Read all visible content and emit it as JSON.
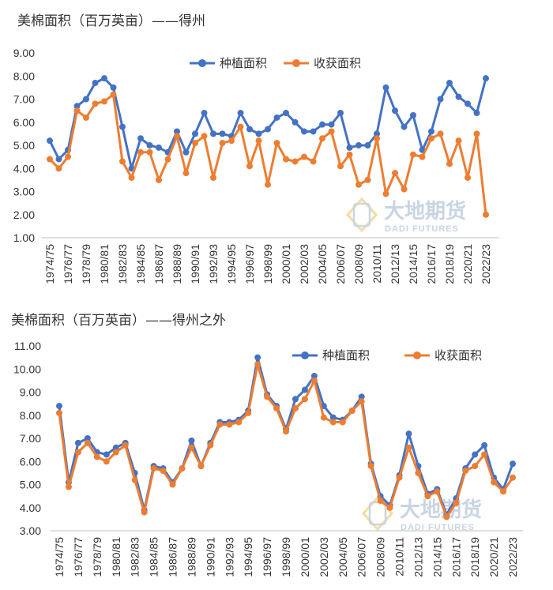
{
  "colors": {
    "planted": "#4472C4",
    "harvested": "#ED7D31",
    "axis": "#bfbfbf"
  },
  "watermark": {
    "cn": "大地期货",
    "en": "DADI FUTURES"
  },
  "chart_data": [
    {
      "type": "line",
      "title": "美棉面积（百万英亩）——得州",
      "xlabel": "",
      "ylabel": "",
      "ylim": [
        1,
        9
      ],
      "y_ticks": [
        "1.00",
        "2.00",
        "3.00",
        "4.00",
        "5.00",
        "6.00",
        "7.00",
        "8.00",
        "9.00"
      ],
      "x_tick_labels": [
        "1974/75",
        "1976/77",
        "1978/79",
        "1980/81",
        "1982/83",
        "1984/85",
        "1986/87",
        "1988/89",
        "1990/91",
        "1992/93",
        "1994/95",
        "1996/97",
        "1998/99",
        "2000/01",
        "2002/03",
        "2004/05",
        "2006/07",
        "2008/09",
        "2010/11",
        "2012/13",
        "2014/15",
        "2016/17",
        "2018/19",
        "2020/21",
        "2022/23"
      ],
      "grid": false,
      "legend": "top-right",
      "series": [
        {
          "name": "种植面积",
          "values": [
            5.2,
            4.4,
            4.8,
            6.7,
            7.0,
            7.7,
            7.9,
            7.5,
            5.8,
            4.0,
            5.3,
            5.0,
            4.9,
            4.7,
            5.6,
            4.7,
            5.5,
            6.4,
            5.5,
            5.5,
            5.4,
            6.4,
            5.7,
            5.5,
            5.7,
            6.2,
            6.4,
            6.0,
            5.6,
            5.6,
            5.9,
            5.9,
            6.4,
            4.9,
            5.0,
            5.0,
            5.5,
            7.5,
            6.5,
            5.8,
            6.3,
            4.8,
            5.6,
            7.0,
            7.7,
            7.1,
            6.8,
            6.4,
            7.9
          ]
        },
        {
          "name": "收获面积",
          "values": [
            4.4,
            4.0,
            4.5,
            6.5,
            6.2,
            6.8,
            6.9,
            7.2,
            4.3,
            3.6,
            4.7,
            4.7,
            3.5,
            4.4,
            5.4,
            3.8,
            5.1,
            5.4,
            3.6,
            5.1,
            5.2,
            5.8,
            4.1,
            5.2,
            3.3,
            5.1,
            4.4,
            4.3,
            4.5,
            4.3,
            5.3,
            5.6,
            4.1,
            4.6,
            3.3,
            3.5,
            5.3,
            2.9,
            3.8,
            3.1,
            4.6,
            4.5,
            5.3,
            5.5,
            4.2,
            5.2,
            3.6,
            5.5,
            2.0
          ]
        }
      ]
    },
    {
      "type": "line",
      "title": "美棉面积（百万英亩）——得州之外",
      "xlabel": "",
      "ylabel": "",
      "ylim": [
        3,
        11
      ],
      "y_ticks": [
        "3.00",
        "4.00",
        "5.00",
        "6.00",
        "7.00",
        "8.00",
        "9.00",
        "10.00",
        "11.00"
      ],
      "x_tick_labels": [
        "1974/75",
        "1976/77",
        "1978/79",
        "1980/81",
        "1982/83",
        "1984/85",
        "1986/87",
        "1988/89",
        "1990/91",
        "1992/93",
        "1994/95",
        "1996/97",
        "1998/99",
        "2000/01",
        "2002/03",
        "2004/05",
        "2006/07",
        "2008/09",
        "2010/11",
        "2012/13",
        "2014/15",
        "2016/17",
        "2018/19",
        "2020/21",
        "2022/23"
      ],
      "grid": false,
      "legend": "top-right",
      "series": [
        {
          "name": "种植面积",
          "values": [
            8.4,
            5.1,
            6.8,
            7.0,
            6.4,
            6.3,
            6.6,
            6.8,
            5.5,
            3.9,
            5.8,
            5.7,
            5.1,
            5.7,
            6.9,
            5.8,
            6.8,
            7.7,
            7.7,
            7.8,
            8.2,
            10.5,
            8.9,
            8.4,
            7.4,
            8.7,
            9.1,
            9.7,
            8.4,
            7.9,
            7.8,
            8.2,
            8.8,
            5.9,
            4.5,
            4.1,
            5.4,
            7.2,
            5.8,
            4.6,
            4.8,
            3.7,
            4.4,
            5.7,
            6.3,
            6.7,
            5.3,
            4.8,
            5.9
          ]
        },
        {
          "name": "收获面积",
          "values": [
            8.1,
            4.9,
            6.4,
            6.8,
            6.2,
            6.0,
            6.4,
            6.7,
            5.2,
            3.8,
            5.7,
            5.6,
            5.0,
            5.7,
            6.6,
            5.8,
            6.7,
            7.6,
            7.6,
            7.7,
            8.1,
            10.2,
            8.8,
            8.3,
            7.3,
            8.3,
            8.7,
            9.5,
            7.9,
            7.7,
            7.7,
            8.2,
            8.6,
            5.8,
            4.3,
            4.0,
            5.3,
            6.6,
            5.5,
            4.5,
            4.7,
            3.6,
            4.2,
            5.6,
            5.8,
            6.3,
            5.1,
            4.7,
            5.3
          ]
        }
      ]
    }
  ]
}
